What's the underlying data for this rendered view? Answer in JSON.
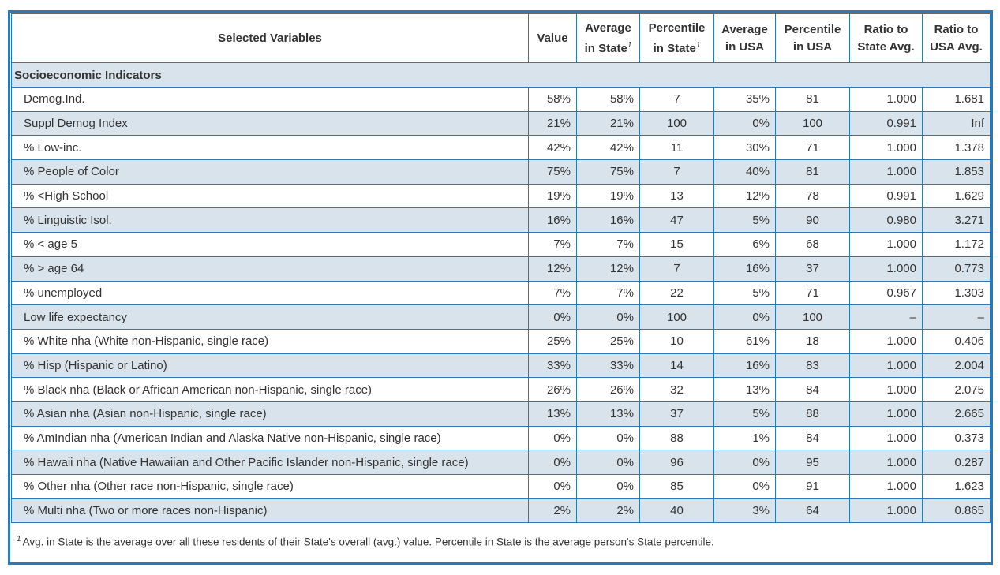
{
  "header": {
    "variable": "Selected Variables",
    "value": "Value",
    "avg_state_l1": "Average",
    "avg_state_l2": "in State",
    "pct_state_l1": "Percentile",
    "pct_state_l2": "in State",
    "avg_usa_l1": "Average",
    "avg_usa_l2": "in USA",
    "pct_usa_l1": "Percentile",
    "pct_usa_l2": "in USA",
    "ratio_state_l1": "Ratio to",
    "ratio_state_l2": "State Avg.",
    "ratio_usa_l1": "Ratio to",
    "ratio_usa_l2": "USA Avg.",
    "footnote_mark": "1"
  },
  "section_title": "Socioeconomic Indicators",
  "rows": [
    {
      "label": "Demog.Ind.",
      "value": "58%",
      "avg_state": "58%",
      "pct_state": "7",
      "avg_usa": "35%",
      "pct_usa": "81",
      "ratio_state": "1.000",
      "ratio_usa": "1.681"
    },
    {
      "label": "Suppl Demog Index",
      "value": "21%",
      "avg_state": "21%",
      "pct_state": "100",
      "avg_usa": "0%",
      "pct_usa": "100",
      "ratio_state": "0.991",
      "ratio_usa": "Inf"
    },
    {
      "label": "% Low-inc.",
      "value": "42%",
      "avg_state": "42%",
      "pct_state": "11",
      "avg_usa": "30%",
      "pct_usa": "71",
      "ratio_state": "1.000",
      "ratio_usa": "1.378"
    },
    {
      "label": "% People of Color",
      "value": "75%",
      "avg_state": "75%",
      "pct_state": "7",
      "avg_usa": "40%",
      "pct_usa": "81",
      "ratio_state": "1.000",
      "ratio_usa": "1.853"
    },
    {
      "label": "% <High School",
      "value": "19%",
      "avg_state": "19%",
      "pct_state": "13",
      "avg_usa": "12%",
      "pct_usa": "78",
      "ratio_state": "0.991",
      "ratio_usa": "1.629"
    },
    {
      "label": "% Linguistic Isol.",
      "value": "16%",
      "avg_state": "16%",
      "pct_state": "47",
      "avg_usa": "5%",
      "pct_usa": "90",
      "ratio_state": "0.980",
      "ratio_usa": "3.271"
    },
    {
      "label": "% < age 5",
      "value": "7%",
      "avg_state": "7%",
      "pct_state": "15",
      "avg_usa": "6%",
      "pct_usa": "68",
      "ratio_state": "1.000",
      "ratio_usa": "1.172"
    },
    {
      "label": "% > age 64",
      "value": "12%",
      "avg_state": "12%",
      "pct_state": "7",
      "avg_usa": "16%",
      "pct_usa": "37",
      "ratio_state": "1.000",
      "ratio_usa": "0.773"
    },
    {
      "label": "% unemployed",
      "value": "7%",
      "avg_state": "7%",
      "pct_state": "22",
      "avg_usa": "5%",
      "pct_usa": "71",
      "ratio_state": "0.967",
      "ratio_usa": "1.303"
    },
    {
      "label": "Low life expectancy",
      "value": "0%",
      "avg_state": "0%",
      "pct_state": "100",
      "avg_usa": "0%",
      "pct_usa": "100",
      "ratio_state": "–",
      "ratio_usa": "–"
    },
    {
      "label": "% White nha (White non-Hispanic, single race)",
      "value": "25%",
      "avg_state": "25%",
      "pct_state": "10",
      "avg_usa": "61%",
      "pct_usa": "18",
      "ratio_state": "1.000",
      "ratio_usa": "0.406"
    },
    {
      "label": "% Hisp (Hispanic or Latino)",
      "value": "33%",
      "avg_state": "33%",
      "pct_state": "14",
      "avg_usa": "16%",
      "pct_usa": "83",
      "ratio_state": "1.000",
      "ratio_usa": "2.004"
    },
    {
      "label": "% Black nha (Black or African American non-Hispanic, single race)",
      "value": "26%",
      "avg_state": "26%",
      "pct_state": "32",
      "avg_usa": "13%",
      "pct_usa": "84",
      "ratio_state": "1.000",
      "ratio_usa": "2.075"
    },
    {
      "label": "% Asian nha (Asian non-Hispanic, single race)",
      "value": "13%",
      "avg_state": "13%",
      "pct_state": "37",
      "avg_usa": "5%",
      "pct_usa": "88",
      "ratio_state": "1.000",
      "ratio_usa": "2.665"
    },
    {
      "label": "% AmIndian nha (American Indian and Alaska Native non-Hispanic, single race)",
      "value": "0%",
      "avg_state": "0%",
      "pct_state": "88",
      "avg_usa": "1%",
      "pct_usa": "84",
      "ratio_state": "1.000",
      "ratio_usa": "0.373"
    },
    {
      "label": "% Hawaii nha (Native Hawaiian and Other Pacific Islander non-Hispanic, single race)",
      "value": "0%",
      "avg_state": "0%",
      "pct_state": "96",
      "avg_usa": "0%",
      "pct_usa": "95",
      "ratio_state": "1.000",
      "ratio_usa": "0.287"
    },
    {
      "label": "% Other nha (Other race non-Hispanic, single race)",
      "value": "0%",
      "avg_state": "0%",
      "pct_state": "85",
      "avg_usa": "0%",
      "pct_usa": "91",
      "ratio_state": "1.000",
      "ratio_usa": "1.623"
    },
    {
      "label": "% Multi nha (Two or more races non-Hispanic)",
      "value": "2%",
      "avg_state": "2%",
      "pct_state": "40",
      "avg_usa": "3%",
      "pct_usa": "64",
      "ratio_state": "1.000",
      "ratio_usa": "0.865"
    }
  ],
  "footnote": {
    "mark": "1",
    "text": "Avg. in State is the average over all these residents of their State's overall (avg.) value. Percentile in State is the average person's State percentile."
  },
  "colors": {
    "border": "#2b78bb",
    "stripe": "#d8e3ec",
    "text": "#333333"
  }
}
